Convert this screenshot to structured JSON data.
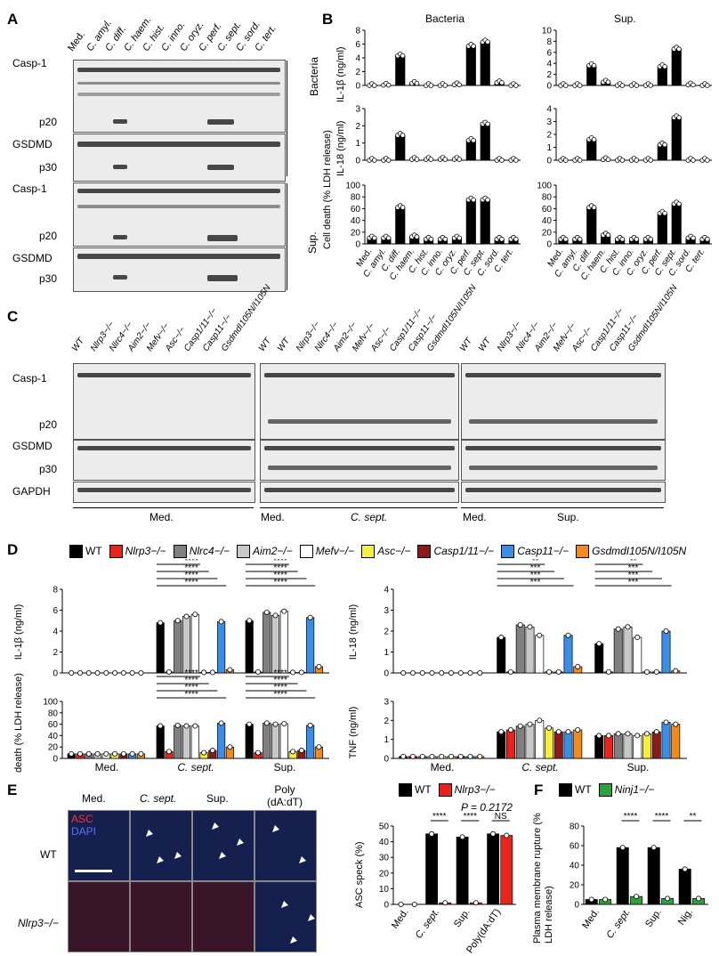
{
  "panel_A": {
    "letter": "A",
    "lanes": [
      "Med.",
      "C. amyl.",
      "C. diff.",
      "C. haem.",
      "C. hist.",
      "C. inno.",
      "C. oryz.",
      "C. perf.",
      "C. sept.",
      "C. sord.",
      "C. tert."
    ],
    "row_labels": [
      "Casp-1",
      "p20",
      "GSDMD",
      "p30",
      "Casp-1",
      "p20",
      "GSDMD",
      "p30"
    ],
    "group_labels": [
      "Bacteria",
      "Sup."
    ]
  },
  "panel_B": {
    "letter": "B",
    "col_titles": [
      "Bacteria",
      "Sup."
    ],
    "ylabels": [
      "IL-1β (ng/ml)",
      "IL-18 (ng/ml)",
      "Cell death (% LDH release)"
    ],
    "categories": [
      "Med.",
      "C. amyl.",
      "C. diff.",
      "C. haem.",
      "C. hist.",
      "C. inno.",
      "C. oryz.",
      "C. perf.",
      "C. sept.",
      "C. sord.",
      "C. tert."
    ]
  },
  "panel_C": {
    "letter": "C",
    "lanes": [
      "WT",
      "Nlrp3−/−",
      "Nlrc4−/−",
      "Aim2−/−",
      "Mefv−/−",
      "Asc−/−",
      "Casp1/11−/−",
      "Casp11−/−",
      "GsdmdI105N/I105N"
    ],
    "row_labels": [
      "Casp-1",
      "p20",
      "GSDMD",
      "p30",
      "GAPDH"
    ],
    "group_labels": [
      "Med.",
      "Med.",
      "C. sept.",
      "Med.",
      "Sup."
    ]
  },
  "panel_D": {
    "letter": "D",
    "legend": [
      {
        "name": "WT",
        "color": "#000000"
      },
      {
        "name": "Nlrp3−/−",
        "color": "#e8231c"
      },
      {
        "name": "Nlrc4−/−",
        "color": "#808080"
      },
      {
        "name": "Aim2−/−",
        "color": "#c8c8c8"
      },
      {
        "name": "Mefv−/−",
        "color": "#ffffff"
      },
      {
        "name": "Asc−/−",
        "color": "#f6ef3b"
      },
      {
        "name": "Casp1/11−/−",
        "color": "#8b1a1a"
      },
      {
        "name": "Casp11−/−",
        "color": "#3a8ee6"
      },
      {
        "name": "GsdmdI105N/I105N",
        "color": "#f28a1e"
      }
    ],
    "groups": [
      "Med.",
      "C. sept.",
      "Sup."
    ],
    "sig": "****",
    "sig_il18": "***",
    "sig_il18_top": "**"
  },
  "panel_E": {
    "letter": "E",
    "col_labels": [
      "Med.",
      "C. sept.",
      "Sup.",
      "Poly (dA:dT)"
    ],
    "row_labels": [
      "WT",
      "Nlrp3−/−"
    ],
    "stain_asc": "ASC",
    "stain_dapi": "DAPI",
    "legend": [
      "WT",
      "Nlrp3−/−"
    ],
    "p_value": "P = 0.2172",
    "sig": "****",
    "ns": "NS"
  },
  "panel_F": {
    "letter": "F",
    "legend": [
      "WT",
      "Ninj1−/−"
    ],
    "sig": "****",
    "sig2": "**"
  },
  "chart_data": [
    {
      "type": "bar",
      "id": "B_bact_il1b",
      "ylabel": "IL-1β (ng/ml)",
      "title": "Bacteria",
      "ylim": [
        0,
        8
      ],
      "yticks": [
        0,
        2,
        4,
        6,
        8
      ],
      "categories": [
        "Med.",
        "C. amyl.",
        "C. diff.",
        "C. haem.",
        "C. hist.",
        "C. inno.",
        "C. oryz.",
        "C. perf.",
        "C. sept.",
        "C. sord.",
        "C. tert."
      ],
      "values": [
        0,
        0.05,
        4.3,
        0.3,
        0,
        0,
        0.1,
        5.7,
        6.3,
        0.4,
        0
      ]
    },
    {
      "type": "bar",
      "id": "B_sup_il1b",
      "title": "Sup.",
      "ylim": [
        0,
        10
      ],
      "yticks": [
        0,
        2,
        4,
        6,
        8,
        10
      ],
      "categories": [
        "Med.",
        "C. amyl.",
        "C. diff.",
        "C. haem.",
        "C. hist.",
        "C. inno.",
        "C. oryz.",
        "C. perf.",
        "C. sept.",
        "C. sord.",
        "C. tert."
      ],
      "values": [
        0,
        0,
        3.6,
        0.6,
        0,
        0,
        0,
        3.4,
        6.6,
        0.1,
        0
      ]
    },
    {
      "type": "bar",
      "id": "B_bact_il18",
      "ylabel": "IL-18 (ng/ml)",
      "ylim": [
        0,
        3
      ],
      "yticks": [
        0,
        1,
        2,
        3
      ],
      "categories": [
        "Med.",
        "C. amyl.",
        "C. diff.",
        "C. haem.",
        "C. hist.",
        "C. inno.",
        "C. oryz.",
        "C. perf.",
        "C. sept.",
        "C. sord.",
        "C. tert."
      ],
      "values": [
        0,
        0,
        1.45,
        0.05,
        0.05,
        0.05,
        0.05,
        1.15,
        2.1,
        0,
        0
      ]
    },
    {
      "type": "bar",
      "id": "B_sup_il18",
      "ylim": [
        0,
        4
      ],
      "yticks": [
        0,
        1,
        2,
        3,
        4
      ],
      "categories": [
        "Med.",
        "C. amyl.",
        "C. diff.",
        "C. haem.",
        "C. hist.",
        "C. inno.",
        "C. oryz.",
        "C. perf.",
        "C. sept.",
        "C. sord.",
        "C. tert."
      ],
      "values": [
        0,
        0,
        1.6,
        0.05,
        0,
        0,
        0,
        1.2,
        3.3,
        0,
        0
      ]
    },
    {
      "type": "bar",
      "id": "B_bact_ldh",
      "ylabel": "Cell death (% LDH release)",
      "ylim": [
        0,
        100
      ],
      "yticks": [
        0,
        20,
        40,
        60,
        80,
        100
      ],
      "categories": [
        "Med.",
        "C. amyl.",
        "C. diff.",
        "C. haem.",
        "C. hist.",
        "C. inno.",
        "C. oryz.",
        "C. perf.",
        "C. sept.",
        "C. sord.",
        "C. tert."
      ],
      "values": [
        10,
        10,
        62,
        12,
        8,
        8,
        10,
        75,
        75,
        8,
        8
      ]
    },
    {
      "type": "bar",
      "id": "B_sup_ldh",
      "ylim": [
        0,
        100
      ],
      "yticks": [
        0,
        20,
        40,
        60,
        80,
        100
      ],
      "categories": [
        "Med.",
        "C. amyl.",
        "C. diff.",
        "C. haem.",
        "C. hist.",
        "C. inno.",
        "C. oryz.",
        "C. perf.",
        "C. sept.",
        "C. sord.",
        "C. tert."
      ],
      "values": [
        8,
        8,
        62,
        15,
        8,
        8,
        8,
        52,
        68,
        10,
        8
      ]
    },
    {
      "type": "bar",
      "id": "D_il1b",
      "ylabel": "IL-1β (ng/ml)",
      "ylim": [
        0,
        8
      ],
      "yticks": [
        0,
        2,
        4,
        6,
        8
      ],
      "categories": [
        "Med.",
        "C. sept.",
        "Sup."
      ],
      "series": [
        {
          "name": "WT",
          "values": [
            0,
            4.8,
            5.0
          ]
        },
        {
          "name": "Nlrp3−/−",
          "values": [
            0,
            0.1,
            0.1
          ]
        },
        {
          "name": "Nlrc4−/−",
          "values": [
            0,
            5.0,
            5.8
          ]
        },
        {
          "name": "Aim2−/−",
          "values": [
            0,
            5.4,
            5.5
          ]
        },
        {
          "name": "Mefv−/−",
          "values": [
            0,
            5.6,
            5.9
          ]
        },
        {
          "name": "Asc−/−",
          "values": [
            0,
            0.05,
            0.05
          ]
        },
        {
          "name": "Casp1/11−/−",
          "values": [
            0,
            0.05,
            0.05
          ]
        },
        {
          "name": "Casp11−/−",
          "values": [
            0,
            4.9,
            5.3
          ]
        },
        {
          "name": "GsdmdI105N/I105N",
          "values": [
            0,
            0.3,
            0.6
          ]
        }
      ]
    },
    {
      "type": "bar",
      "id": "D_il18",
      "ylabel": "IL-18 (ng/ml)",
      "ylim": [
        0,
        4
      ],
      "yticks": [
        0,
        1,
        2,
        3,
        4
      ],
      "categories": [
        "Med.",
        "C. sept.",
        "Sup."
      ],
      "series": [
        {
          "name": "WT",
          "values": [
            0,
            1.7,
            1.4
          ]
        },
        {
          "name": "Nlrp3−/−",
          "values": [
            0,
            0.05,
            0.05
          ]
        },
        {
          "name": "Nlrc4−/−",
          "values": [
            0,
            2.3,
            2.1
          ]
        },
        {
          "name": "Aim2−/−",
          "values": [
            0,
            2.2,
            2.2
          ]
        },
        {
          "name": "Mefv−/−",
          "values": [
            0,
            1.8,
            1.7
          ]
        },
        {
          "name": "Asc−/−",
          "values": [
            0,
            0.05,
            0.05
          ]
        },
        {
          "name": "Casp1/11−/−",
          "values": [
            0,
            0.05,
            0.05
          ]
        },
        {
          "name": "Casp11−/−",
          "values": [
            0,
            1.8,
            2.0
          ]
        },
        {
          "name": "GsdmdI105N/I105N",
          "values": [
            0,
            0.3,
            0.1
          ]
        }
      ]
    },
    {
      "type": "bar",
      "id": "D_ldh",
      "ylabel": "Cell death (% LDH release)",
      "ylim": [
        0,
        100
      ],
      "yticks": [
        0,
        20,
        40,
        60,
        80,
        100
      ],
      "categories": [
        "Med.",
        "C. sept.",
        "Sup."
      ],
      "series": [
        {
          "name": "WT",
          "values": [
            8,
            57,
            60
          ]
        },
        {
          "name": "Nlrp3−/−",
          "values": [
            8,
            12,
            10
          ]
        },
        {
          "name": "Nlrc4−/−",
          "values": [
            8,
            58,
            62
          ]
        },
        {
          "name": "Aim2−/−",
          "values": [
            8,
            57,
            60
          ]
        },
        {
          "name": "Mefv−/−",
          "values": [
            8,
            57,
            61
          ]
        },
        {
          "name": "Asc−/−",
          "values": [
            8,
            10,
            12
          ]
        },
        {
          "name": "Casp1/11−/−",
          "values": [
            8,
            14,
            14
          ]
        },
        {
          "name": "Casp11−/−",
          "values": [
            8,
            62,
            58
          ]
        },
        {
          "name": "GsdmdI105N/I105N",
          "values": [
            8,
            20,
            20
          ]
        }
      ]
    },
    {
      "type": "bar",
      "id": "D_tnf",
      "ylabel": "TNF (ng/ml)",
      "ylim": [
        0,
        3
      ],
      "yticks": [
        0,
        1,
        2,
        3
      ],
      "categories": [
        "Med.",
        "C. sept.",
        "Sup."
      ],
      "series": [
        {
          "name": "WT",
          "values": [
            0.1,
            1.4,
            1.2
          ]
        },
        {
          "name": "Nlrp3−/−",
          "values": [
            0.1,
            1.5,
            1.2
          ]
        },
        {
          "name": "Nlrc4−/−",
          "values": [
            0.1,
            1.7,
            1.3
          ]
        },
        {
          "name": "Aim2−/−",
          "values": [
            0.1,
            1.8,
            1.3
          ]
        },
        {
          "name": "Mefv−/−",
          "values": [
            0.1,
            2.0,
            1.2
          ]
        },
        {
          "name": "Asc−/−",
          "values": [
            0.1,
            1.6,
            1.3
          ]
        },
        {
          "name": "Casp1/11−/−",
          "values": [
            0.1,
            1.4,
            1.4
          ]
        },
        {
          "name": "Casp11−/−",
          "values": [
            0.1,
            1.4,
            1.9
          ]
        },
        {
          "name": "GsdmdI105N/I105N",
          "values": [
            0.1,
            1.5,
            1.8
          ]
        }
      ]
    },
    {
      "type": "bar",
      "id": "E_asc",
      "ylabel": "ASC speck (%)",
      "ylim": [
        0,
        50
      ],
      "yticks": [
        0,
        10,
        20,
        30,
        40,
        50
      ],
      "categories": [
        "Med.",
        "C. sept.",
        "Sup.",
        "Poly(dA:dT)"
      ],
      "series": [
        {
          "name": "WT",
          "values": [
            0,
            45,
            43,
            45
          ]
        },
        {
          "name": "Nlrp3−/−",
          "values": [
            0,
            1,
            1,
            44
          ]
        }
      ]
    },
    {
      "type": "bar",
      "id": "F_pmr",
      "ylabel": "Plasma membrane rupture (% LDH release)",
      "ylim": [
        0,
        80
      ],
      "yticks": [
        0,
        20,
        40,
        60,
        80
      ],
      "categories": [
        "Med.",
        "C. sept.",
        "Sup.",
        "Nig."
      ],
      "series": [
        {
          "name": "WT",
          "values": [
            5,
            58,
            58,
            36
          ]
        },
        {
          "name": "Ninj1−/−",
          "values": [
            5,
            8,
            6,
            6
          ]
        }
      ]
    }
  ]
}
